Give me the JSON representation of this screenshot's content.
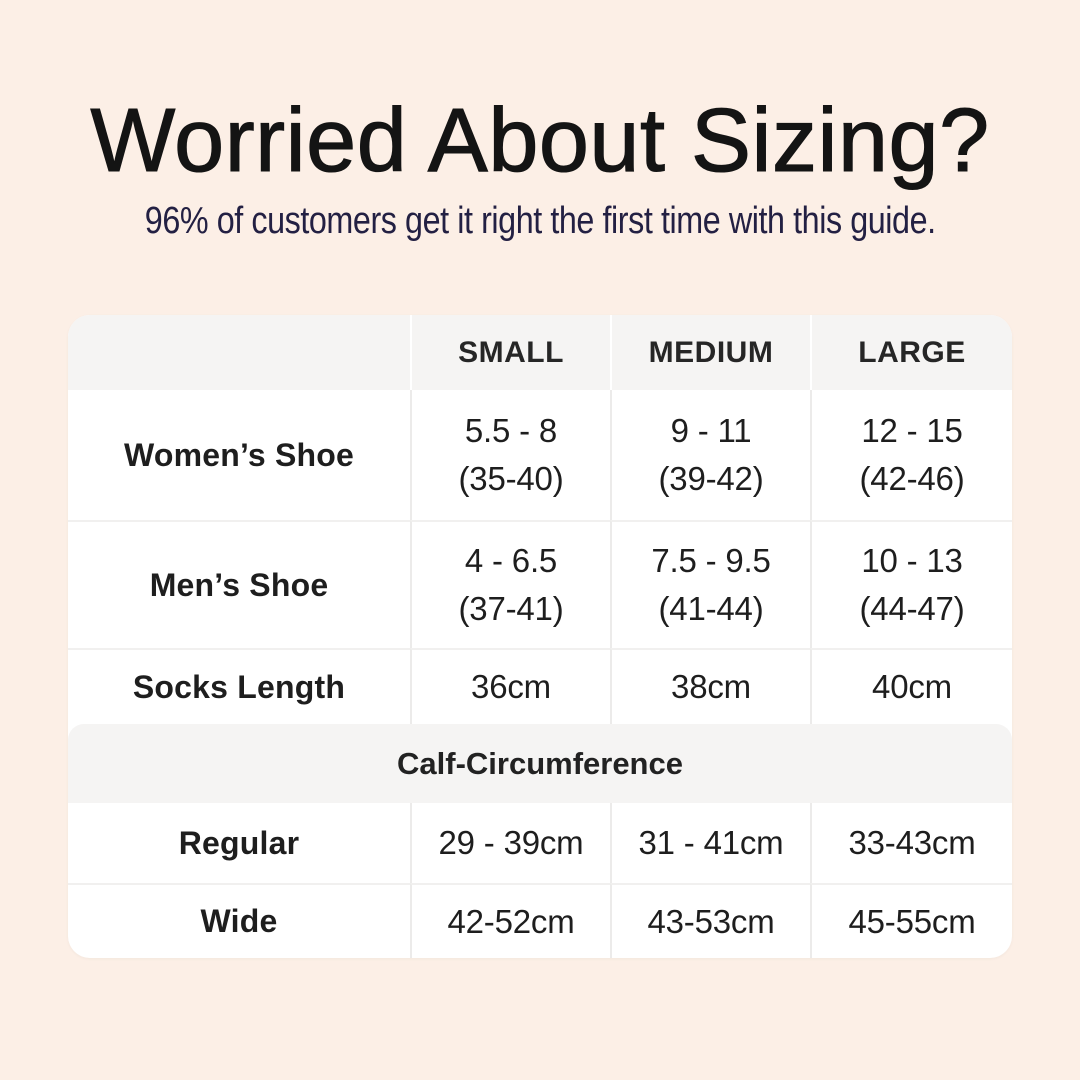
{
  "header": {
    "title": "Worried About Sizing?",
    "subtitle": "96% of customers get it right the first time with this guide."
  },
  "colors": {
    "page_bg": "#fcefe6",
    "card_bg": "#ffffff",
    "band_bg": "#f5f4f3",
    "divider": "#ecebea",
    "title_color": "#141414",
    "subtitle_color": "#232043",
    "table_text": "#1e1e1e"
  },
  "size_table": {
    "column_headers": [
      "SMALL",
      "MEDIUM",
      "LARGE"
    ],
    "rows": [
      {
        "label": "Women’s Shoe",
        "small": {
          "line1": "5.5 - 8",
          "line2": "(35-40)"
        },
        "medium": {
          "line1": "9 - 11",
          "line2": "(39-42)"
        },
        "large": {
          "line1": "12 - 15",
          "line2": "(42-46)"
        }
      },
      {
        "label": "Men’s Shoe",
        "small": {
          "line1": "4 - 6.5",
          "line2": "(37-41)"
        },
        "medium": {
          "line1": "7.5 - 9.5",
          "line2": "(41-44)"
        },
        "large": {
          "line1": "10 - 13",
          "line2": "(44-47)"
        }
      },
      {
        "label": "Socks Length",
        "small": {
          "line1": "36cm"
        },
        "medium": {
          "line1": "38cm"
        },
        "large": {
          "line1": "40cm"
        }
      }
    ],
    "section_header": "Calf-Circumference",
    "section_rows": [
      {
        "label": "Regular",
        "small": "29 - 39cm",
        "medium": "31 - 41cm",
        "large": "33-43cm"
      },
      {
        "label": "Wide",
        "small": "42-52cm",
        "medium": "43-53cm",
        "large": "45-55cm"
      }
    ]
  },
  "chart_data": {
    "type": "table",
    "title": "Worried About Sizing?",
    "subtitle": "96% of customers get it right the first time with this guide.",
    "columns": [
      "",
      "SMALL",
      "MEDIUM",
      "LARGE"
    ],
    "rows": [
      [
        "Women’s Shoe",
        "5.5 - 8 (35-40)",
        "9 - 11 (39-42)",
        "12 - 15 (42-46)"
      ],
      [
        "Men’s Shoe",
        "4 - 6.5 (37-41)",
        "7.5 - 9.5 (41-44)",
        "10 - 13 (44-47)"
      ],
      [
        "Socks Length",
        "36cm",
        "38cm",
        "40cm"
      ],
      [
        "Calf-Circumference",
        "",
        "",
        ""
      ],
      [
        "Regular",
        "29 - 39cm",
        "31 - 41cm",
        "33-43cm"
      ],
      [
        "Wide",
        "42-52cm",
        "43-53cm",
        "45-55cm"
      ]
    ]
  }
}
